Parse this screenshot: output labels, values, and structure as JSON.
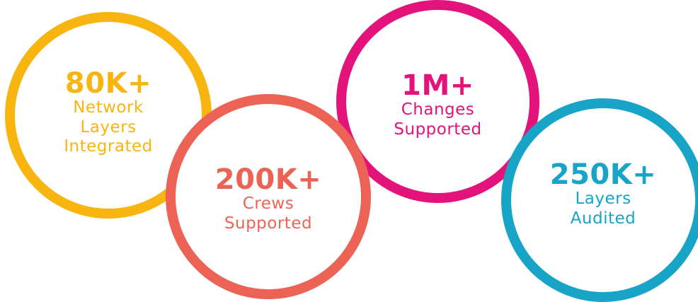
{
  "stats": [
    {
      "value": "80K+",
      "label_lines": [
        "Network",
        "Layers",
        "Integrated"
      ],
      "color": "#F9B50F"
    },
    {
      "value": "200K+",
      "label_lines": [
        "Crews",
        "Supported"
      ],
      "color": "#EC6356"
    },
    {
      "value": "1M+",
      "label_lines": [
        "Changes",
        "Supported"
      ],
      "color": "#E3137B"
    },
    {
      "value": "250K+",
      "label_lines": [
        "Layers",
        "Audited"
      ],
      "color": "#17A4C6"
    }
  ]
}
